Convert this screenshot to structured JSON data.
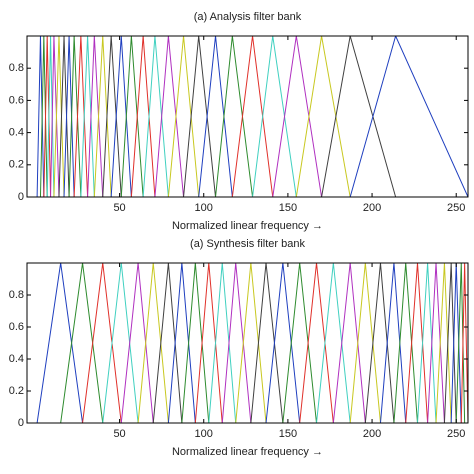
{
  "chart_data": [
    {
      "type": "filterbank",
      "title": "(a) Analysis filter bank",
      "xlabel": "Normalized linear frequency →",
      "edges": [
        1,
        3,
        5,
        7,
        9,
        11,
        14,
        17,
        20,
        23,
        27,
        31,
        35,
        40,
        45,
        51,
        57,
        64,
        71,
        79,
        88,
        97,
        107,
        117,
        129,
        141,
        155,
        170,
        187,
        214,
        257
      ],
      "peak": 1,
      "colors": [
        "#1f3fbf",
        "#2e8b2e",
        "#e0302a",
        "#40d0c0",
        "#b030c0",
        "#c8c820",
        "#404040"
      ],
      "xlim": [
        -5,
        257
      ],
      "ylim": [
        0,
        1
      ],
      "xticks": [
        50,
        100,
        150,
        200,
        250
      ],
      "yticks": [
        0,
        0.2,
        0.4,
        0.6,
        0.8
      ]
    },
    {
      "type": "filterbank",
      "title": "(a) Synthesis filter bank",
      "xlabel": "Normalized linear frequency →",
      "edges": [
        1,
        15,
        28,
        40,
        51,
        61,
        70,
        79,
        87,
        95,
        103,
        111,
        119,
        128,
        137,
        147,
        157,
        167,
        177,
        187,
        196,
        205,
        213,
        220,
        227,
        233,
        238,
        243,
        247,
        250,
        253,
        255,
        257
      ],
      "peak": 1,
      "colors": [
        "#1f3fbf",
        "#2e8b2e",
        "#e0302a",
        "#40d0c0",
        "#b030c0",
        "#c8c820",
        "#404040"
      ],
      "xlim": [
        -5,
        257
      ],
      "ylim": [
        0,
        1
      ],
      "xticks": [
        50,
        100,
        150,
        200,
        250
      ],
      "yticks": [
        0,
        0.2,
        0.4,
        0.6,
        0.8
      ]
    }
  ]
}
